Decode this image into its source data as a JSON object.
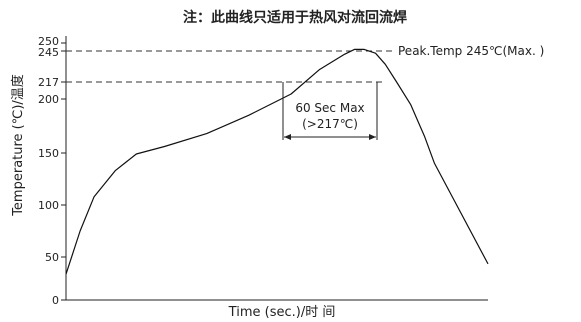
{
  "chart_data": {
    "type": "line",
    "title": "注：此曲线只适用于热风对流回流焊",
    "xlabel": "Time (sec.)/时 间",
    "ylabel": "Temperature (℃)/温度",
    "ylim": [
      0,
      255
    ],
    "yticks": [
      0,
      50,
      100,
      150,
      200,
      217,
      245,
      250
    ],
    "grid": false,
    "series": [
      {
        "x": [
          0,
          10,
          20,
          35,
          50,
          70,
          100,
          130,
          160,
          180,
          198,
          205,
          212,
          220,
          227,
          235,
          245,
          255,
          262,
          300
        ],
        "y": [
          30,
          75,
          108,
          133,
          149,
          156,
          168,
          185,
          205,
          228,
          242,
          246,
          246,
          243,
          233,
          217,
          195,
          165,
          140,
          42
        ]
      }
    ],
    "reference_lines": [
      {
        "y": 245,
        "label": "Peak.Temp 245℃(Max. )"
      },
      {
        "y": 217,
        "label": ""
      }
    ],
    "annotations": [
      {
        "text": "60 Sec Max"
      },
      {
        "text": "(>217℃)"
      }
    ]
  }
}
